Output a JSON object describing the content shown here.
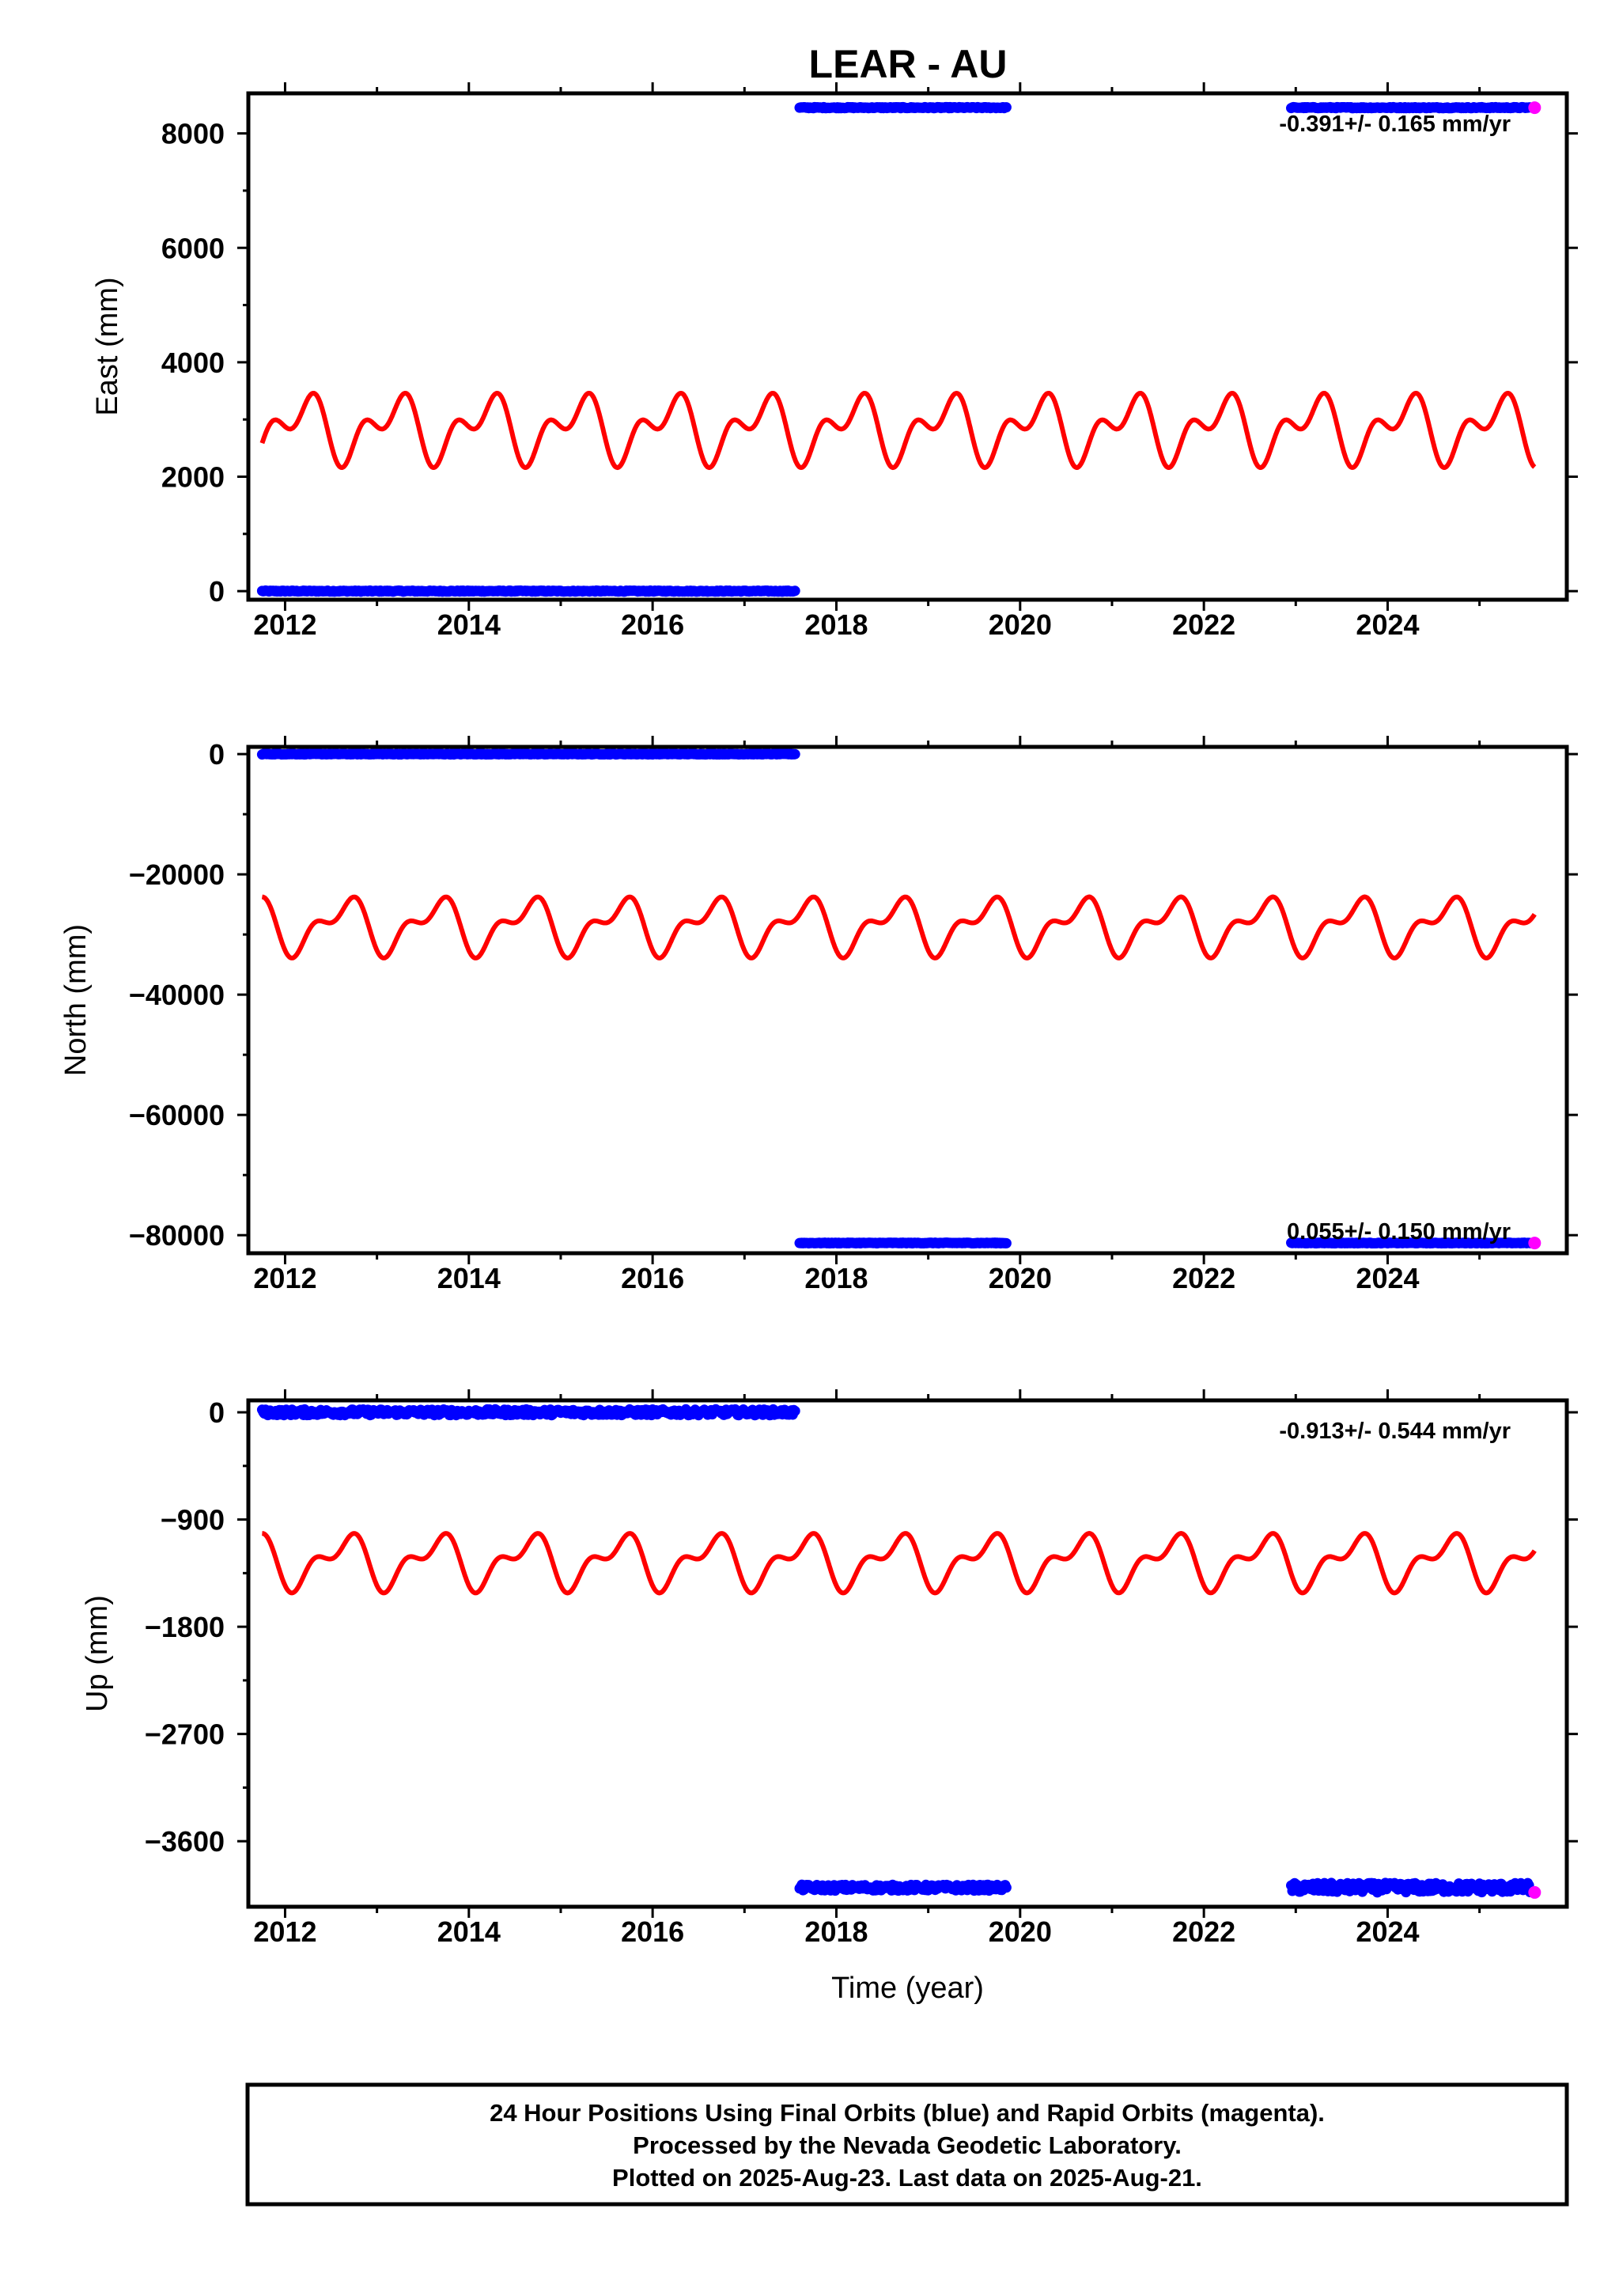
{
  "title": "LEAR - AU",
  "colors": {
    "final": "#0000ff",
    "rapid": "#ff00ff",
    "model": "#ff0000",
    "frame": "#000000"
  },
  "chart_data": [
    {
      "type": "scatter",
      "component": "east",
      "ylabel": "East (mm)",
      "xlabel": "",
      "xlim": [
        2011.6,
        2025.95
      ],
      "ylim": [
        -150,
        8700
      ],
      "yticks": [
        0,
        2000,
        4000,
        6000,
        8000
      ],
      "ytick_labels": [
        "0",
        "2000",
        "4000",
        "6000",
        "8000"
      ],
      "xticks": [
        2012,
        2014,
        2016,
        2018,
        2020,
        2022,
        2024
      ],
      "xtick_labels": [
        "2012",
        "2014",
        "2016",
        "2018",
        "2020",
        "2022",
        "2024"
      ],
      "rate_label": "-0.391+/- 0.165 mm/yr",
      "series": [
        {
          "kind": "final",
          "segments": [
            {
              "x": [
                2011.75,
                2017.55
              ],
              "y": 0,
              "scatter": 10
            },
            {
              "x": [
                2017.6,
                2019.85
              ],
              "y": 8450,
              "scatter": 10
            },
            {
              "x": [
                2022.95,
                2025.55
              ],
              "y": 8450,
              "scatter": 10
            }
          ]
        },
        {
          "kind": "rapid",
          "points": [
            {
              "x": 2025.6,
              "y": 8450
            }
          ]
        },
        {
          "kind": "model",
          "base": 2850,
          "annual": 420,
          "semiannual": 330,
          "phase": 0.0,
          "x": [
            2011.75,
            2025.6
          ]
        }
      ]
    },
    {
      "type": "scatter",
      "component": "north",
      "ylabel": "North (mm)",
      "xlabel": "",
      "xlim": [
        2011.6,
        2025.95
      ],
      "ylim": [
        -83000,
        1200
      ],
      "yticks": [
        -80000,
        -60000,
        -40000,
        -20000,
        0
      ],
      "ytick_labels": [
        "−80000",
        "−60000",
        "−40000",
        "−20000",
        "0"
      ],
      "xticks": [
        2012,
        2014,
        2016,
        2018,
        2020,
        2022,
        2024
      ],
      "xtick_labels": [
        "2012",
        "2014",
        "2016",
        "2018",
        "2020",
        "2022",
        "2024"
      ],
      "rate_label": "0.055+/- 0.150 mm/yr",
      "series": [
        {
          "kind": "final",
          "segments": [
            {
              "x": [
                2011.75,
                2017.55
              ],
              "y": 0,
              "scatter": 60
            },
            {
              "x": [
                2017.6,
                2019.85
              ],
              "y": -81300,
              "scatter": 60
            },
            {
              "x": [
                2022.95,
                2025.55
              ],
              "y": -81300,
              "scatter": 60
            }
          ]
        },
        {
          "kind": "rapid",
          "points": [
            {
              "x": 2025.6,
              "y": -81300
            }
          ]
        },
        {
          "kind": "model",
          "base": -28500,
          "annual": -3700,
          "semiannual": 2200,
          "phase": 0.3,
          "x": [
            2011.75,
            2025.6
          ]
        }
      ]
    },
    {
      "type": "scatter",
      "component": "up",
      "ylabel": "Up (mm)",
      "xlabel": "Time (year)",
      "xlim": [
        2011.6,
        2025.95
      ],
      "ylim": [
        -4150,
        100
      ],
      "yticks": [
        -3600,
        -2700,
        -1800,
        -900,
        0
      ],
      "ytick_labels": [
        "−3600",
        "−2700",
        "−1800",
        "−900",
        "0"
      ],
      "xticks": [
        2012,
        2014,
        2016,
        2018,
        2020,
        2022,
        2024
      ],
      "xtick_labels": [
        "2012",
        "2014",
        "2016",
        "2018",
        "2020",
        "2022",
        "2024"
      ],
      "rate_label": "-0.913+/- 0.544 mm/yr",
      "series": [
        {
          "kind": "final",
          "segments": [
            {
              "x": [
                2011.75,
                2017.55
              ],
              "y": 0,
              "scatter": 25
            },
            {
              "x": [
                2017.6,
                2019.85
              ],
              "y": -3990,
              "scatter": 25
            },
            {
              "x": [
                2022.95,
                2025.55
              ],
              "y": -3990,
              "scatter": 40
            }
          ]
        },
        {
          "kind": "rapid",
          "points": [
            {
              "x": 2025.6,
              "y": -4030
            }
          ]
        },
        {
          "kind": "model",
          "base": -1250,
          "annual": -180,
          "semiannual": 110,
          "phase": 0.3,
          "x": [
            2011.75,
            2025.6
          ]
        }
      ]
    }
  ],
  "footer": {
    "line1": "24 Hour Positions Using Final Orbits (blue) and Rapid Orbits (magenta).",
    "line2": "Processed by the Nevada Geodetic Laboratory.",
    "line3": "Plotted on 2025-Aug-23. Last data on 2025-Aug-21."
  }
}
